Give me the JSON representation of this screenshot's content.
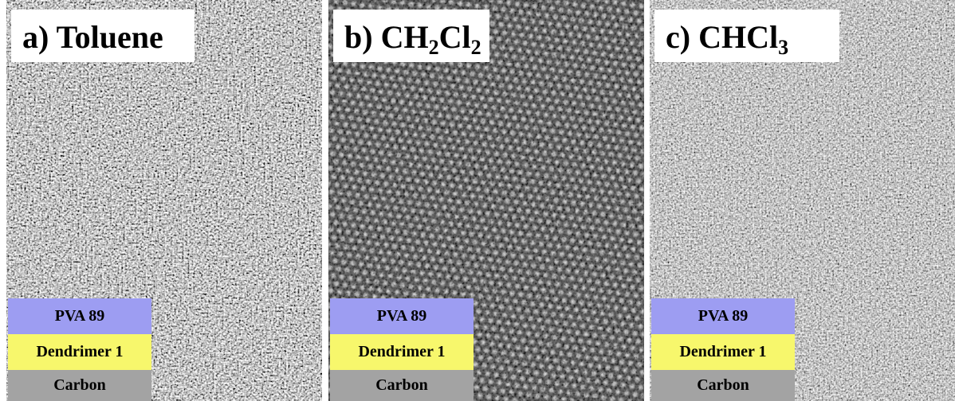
{
  "panels": [
    {
      "label": [
        {
          "text": "a) Toluene"
        }
      ],
      "layers": [
        "PVA 89",
        "Dendrimer 1",
        "Carbon"
      ]
    },
    {
      "label": [
        {
          "text": "b) CH"
        },
        {
          "sub": "2"
        },
        {
          "text": "Cl"
        },
        {
          "sub": "2"
        }
      ],
      "layers": [
        "PVA 89",
        "Dendrimer 1",
        "Carbon"
      ]
    },
    {
      "label": [
        {
          "text": "c) CHCl"
        },
        {
          "sub": "3"
        }
      ],
      "layers": [
        "PVA 89",
        "Dendrimer 1",
        "Carbon"
      ]
    }
  ]
}
